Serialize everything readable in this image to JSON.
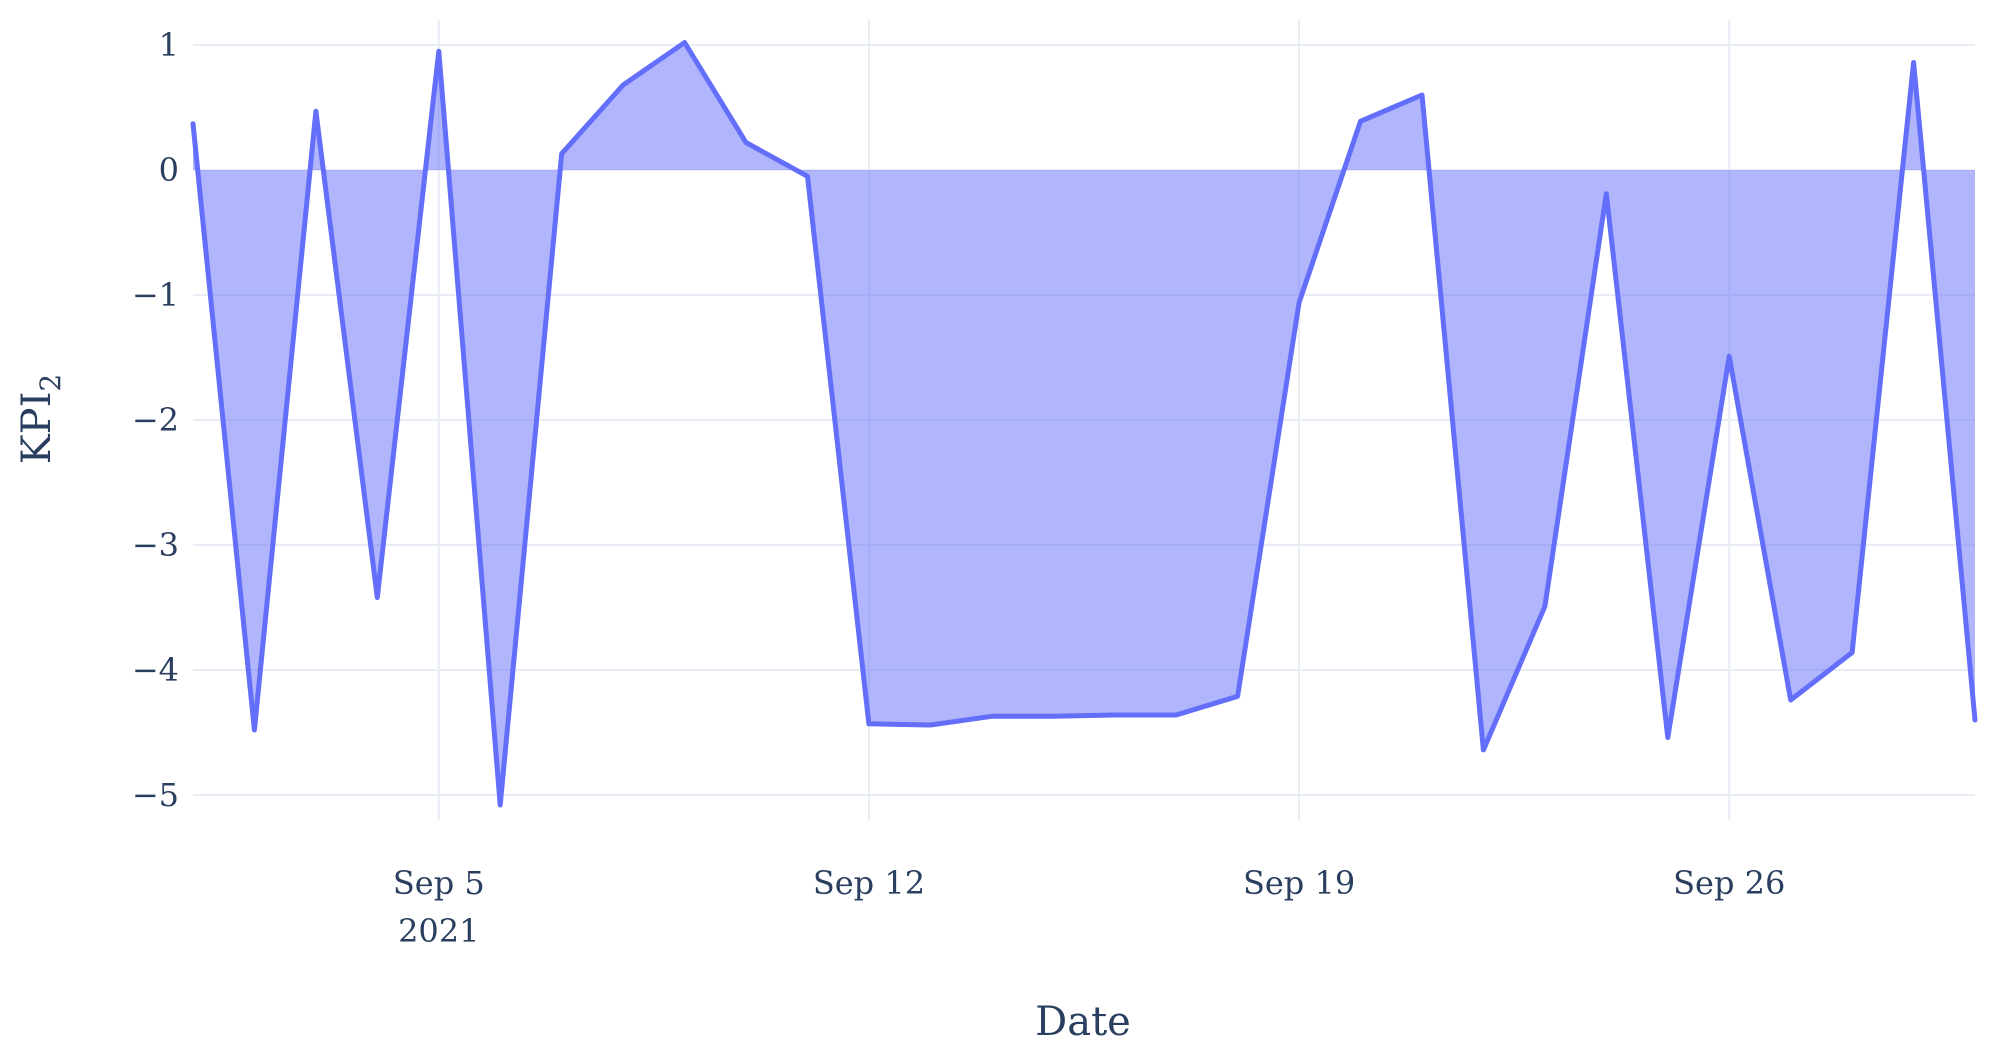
{
  "chart_data": {
    "type": "area",
    "title": "",
    "xlabel": "Date",
    "ylabel": {
      "main": "KPI",
      "subscript": "2"
    },
    "grid": true,
    "fill": "tozeroy",
    "colors": {
      "line": "#636efa",
      "fill": "rgba(99,110,250,0.5)",
      "grid": "#e8ecf4",
      "text": "#2a3f5f"
    },
    "xlim": [
      "2021-09-01",
      "2021-09-30"
    ],
    "ylim": [
      -5.2,
      1.2
    ],
    "x_ticks": [
      {
        "date": "2021-09-05",
        "label": "Sep 5",
        "sublabel": "2021"
      },
      {
        "date": "2021-09-12",
        "label": "Sep 12",
        "sublabel": ""
      },
      {
        "date": "2021-09-19",
        "label": "Sep 19",
        "sublabel": ""
      },
      {
        "date": "2021-09-26",
        "label": "Sep 26",
        "sublabel": ""
      }
    ],
    "y_ticks": [
      {
        "value": 1,
        "label": "1"
      },
      {
        "value": 0,
        "label": "0"
      },
      {
        "value": -1,
        "label": "−1"
      },
      {
        "value": -2,
        "label": "−2"
      },
      {
        "value": -3,
        "label": "−3"
      },
      {
        "value": -4,
        "label": "−4"
      },
      {
        "value": -5,
        "label": "−5"
      }
    ],
    "series": [
      {
        "x": [
          "2021-09-01",
          "2021-09-02",
          "2021-09-03",
          "2021-09-04",
          "2021-09-05",
          "2021-09-06",
          "2021-09-07",
          "2021-09-08",
          "2021-09-09",
          "2021-09-10",
          "2021-09-11",
          "2021-09-12",
          "2021-09-13",
          "2021-09-14",
          "2021-09-15",
          "2021-09-16",
          "2021-09-17",
          "2021-09-18",
          "2021-09-19",
          "2021-09-20",
          "2021-09-21",
          "2021-09-22",
          "2021-09-23",
          "2021-09-24",
          "2021-09-25",
          "2021-09-26",
          "2021-09-27",
          "2021-09-28",
          "2021-09-29",
          "2021-09-30"
        ],
        "values": [
          0.37,
          -4.48,
          0.47,
          -3.42,
          0.95,
          -5.08,
          0.13,
          0.68,
          1.02,
          0.22,
          -0.05,
          -4.43,
          -4.44,
          -4.37,
          -4.37,
          -4.36,
          -4.36,
          -4.21,
          -1.06,
          0.39,
          0.6,
          -4.64,
          -3.49,
          -0.19,
          -4.54,
          -1.49,
          -4.24,
          -3.86,
          0.86,
          -4.4
        ]
      }
    ]
  }
}
